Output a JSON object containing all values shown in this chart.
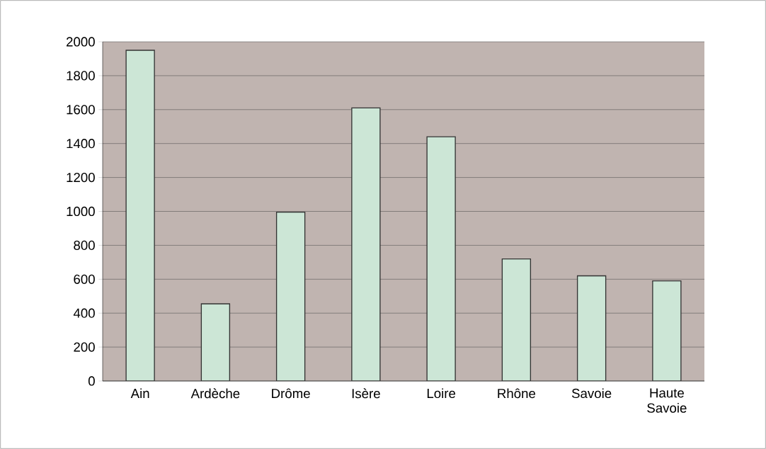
{
  "chart_data": {
    "type": "bar",
    "categories": [
      "Ain",
      "Ardèche",
      "Drôme",
      "Isère",
      "Loire",
      "Rhône",
      "Savoie",
      "Haute Savoie"
    ],
    "values": [
      1950,
      455,
      995,
      1610,
      1440,
      720,
      620,
      590
    ],
    "color": "#cce6d6",
    "ylim": [
      0,
      2000
    ],
    "yticks": [
      0,
      200,
      400,
      600,
      800,
      1000,
      1200,
      1400,
      1600,
      1800,
      2000
    ],
    "grid": "y"
  }
}
